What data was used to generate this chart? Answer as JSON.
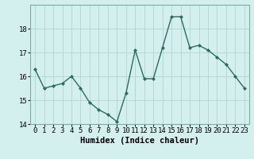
{
  "x": [
    0,
    1,
    2,
    3,
    4,
    5,
    6,
    7,
    8,
    9,
    10,
    11,
    12,
    13,
    14,
    15,
    16,
    17,
    18,
    19,
    20,
    21,
    22,
    23
  ],
  "y": [
    16.3,
    15.5,
    15.6,
    15.7,
    16.0,
    15.5,
    14.9,
    14.6,
    14.4,
    14.1,
    15.3,
    17.1,
    15.9,
    15.9,
    17.2,
    18.5,
    18.5,
    17.2,
    17.3,
    17.1,
    16.8,
    16.5,
    16.0,
    15.5
  ],
  "line_color": "#2a6b65",
  "marker": "D",
  "markersize": 2.0,
  "linewidth": 1.0,
  "bg_color": "#d4f0ee",
  "grid_color": "#b8d8d4",
  "xlabel": "Humidex (Indice chaleur)",
  "ylim": [
    14.0,
    19.0
  ],
  "xlim": [
    -0.5,
    23.5
  ],
  "yticks": [
    14,
    15,
    16,
    17,
    18
  ],
  "xticks": [
    0,
    1,
    2,
    3,
    4,
    5,
    6,
    7,
    8,
    9,
    10,
    11,
    12,
    13,
    14,
    15,
    16,
    17,
    18,
    19,
    20,
    21,
    22,
    23
  ],
  "xlabel_fontsize": 7.5,
  "tick_fontsize": 6.5
}
